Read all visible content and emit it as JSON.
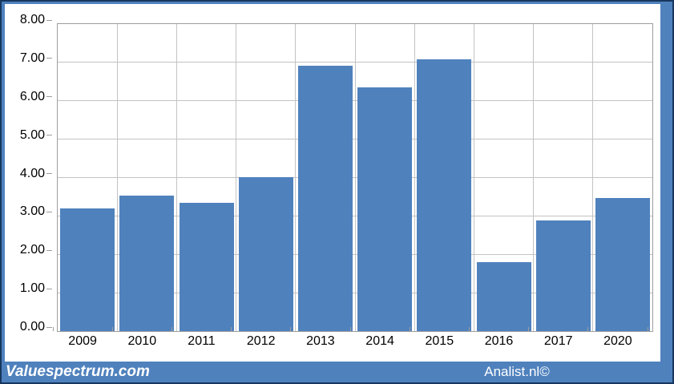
{
  "chart_data": {
    "type": "bar",
    "title": "",
    "xlabel": "",
    "ylabel": "",
    "categories": [
      "2009",
      "2010",
      "2011",
      "2012",
      "2013",
      "2014",
      "2015",
      "2016",
      "2017",
      "2020"
    ],
    "values": [
      3.19,
      3.52,
      3.34,
      4.02,
      6.92,
      6.35,
      7.08,
      1.79,
      2.89,
      3.46
    ],
    "ylim": [
      0,
      8
    ],
    "ytick_step": 1,
    "ytick_decimals": 2,
    "ytick_labels": [
      "0.00",
      "1.00",
      "2.00",
      "3.00",
      "4.00",
      "5.00",
      "6.00",
      "7.00",
      "8.00"
    ],
    "grid": "horizontal-and-vertical",
    "legend": "none",
    "bar_color": "#4f81bd"
  },
  "footer": {
    "left_text": "Valuespectrum.com",
    "right_text": "Analist.nl©"
  },
  "colors": {
    "bar": "#4f81bd",
    "frame": "#4f81bd",
    "frame_outline": "#17375e",
    "chart_background": "#ffffff",
    "plot_border": "#9d9d9d",
    "gridline": "#c3c3c3",
    "axis_tick": "#9d9d9d",
    "tick_label": "#000000",
    "footer_text": "#ffffff"
  }
}
